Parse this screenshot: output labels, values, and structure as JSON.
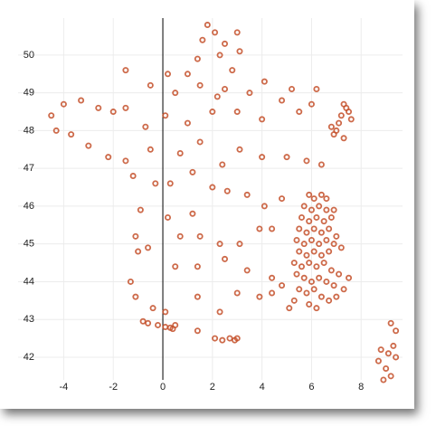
{
  "chart_data": {
    "type": "scatter",
    "xlim": [
      -5.84,
      9.67
    ],
    "ylim": [
      41.4,
      50.98
    ],
    "xticks": [
      -4,
      -2,
      0,
      2,
      4,
      6,
      8
    ],
    "yticks": [
      42,
      43,
      44,
      45,
      46,
      47,
      48,
      49,
      50
    ],
    "grid": true,
    "series": [
      {
        "color": "#c4502a",
        "x": [
          1.8,
          2.1,
          1.6,
          2.5,
          3.0,
          2.3,
          1.4,
          3.1,
          2.8,
          1.0,
          0.2,
          -1.5,
          -0.5,
          0.5,
          1.5,
          2.2,
          2.5,
          3.5,
          4.1,
          4.8,
          5.2,
          6.2,
          6.0,
          5.5,
          4.0,
          3.0,
          2.0,
          1.0,
          0.1,
          -0.7,
          -1.5,
          -2.0,
          -2.6,
          -3.3,
          -4.0,
          -4.5,
          -4.3,
          -3.7,
          -3.0,
          -2.2,
          -1.5,
          -0.5,
          0.7,
          1.5,
          2.4,
          3.1,
          4.0,
          5.0,
          5.8,
          6.4,
          7.3,
          6.9,
          7.1,
          7.2,
          7.4,
          7.0,
          7.5,
          7.3,
          6.8,
          7.6,
          -1.2,
          -0.3,
          0.3,
          1.2,
          2.0,
          2.6,
          3.4,
          4.1,
          4.8,
          1.2,
          0.2,
          -0.9,
          -1.1,
          0.7,
          1.5,
          2.3,
          3.1,
          3.9,
          4.4,
          -1.0,
          -0.6,
          0.5,
          1.4,
          2.5,
          3.4,
          4.4,
          4.8,
          -1.3,
          -1.1,
          -0.4,
          0.1,
          1.4,
          2.3,
          3.0,
          3.9,
          4.4,
          -0.8,
          -0.6,
          -0.2,
          0.1,
          0.3,
          0.4,
          0.5,
          1.4,
          2.1,
          2.4,
          2.7,
          2.9,
          3.0,
          5.9,
          6.1,
          6.4,
          6.6,
          5.7,
          6.0,
          6.3,
          6.6,
          6.9,
          5.6,
          5.9,
          6.2,
          6.5,
          6.8,
          5.5,
          5.8,
          6.1,
          6.4,
          6.7,
          7.0,
          5.4,
          5.7,
          6.0,
          6.3,
          6.6,
          6.9,
          5.5,
          5.8,
          6.1,
          6.4,
          6.7,
          5.3,
          5.6,
          5.9,
          6.2,
          6.5,
          6.8,
          7.1,
          5.4,
          5.7,
          6.0,
          6.3,
          6.6,
          6.9,
          7.3,
          7.5,
          5.5,
          5.8,
          6.1,
          6.4,
          6.7,
          7.0,
          5.9,
          6.2,
          5.3,
          5.1,
          7.2,
          9.2,
          9.4,
          9.3,
          9.1,
          8.8,
          8.7,
          9.0,
          9.2,
          8.9,
          9.4
        ],
        "values": [
          50.8,
          50.6,
          50.4,
          50.3,
          50.6,
          50.0,
          49.9,
          50.1,
          49.6,
          49.5,
          49.5,
          49.6,
          49.2,
          49.0,
          49.2,
          48.9,
          49.1,
          49.0,
          49.3,
          48.8,
          49.1,
          49.1,
          48.7,
          48.5,
          48.3,
          48.5,
          48.5,
          48.2,
          48.4,
          48.1,
          48.6,
          48.5,
          48.6,
          48.8,
          48.7,
          48.4,
          48.0,
          47.9,
          47.6,
          47.3,
          47.2,
          47.5,
          47.4,
          47.7,
          47.1,
          47.5,
          47.3,
          47.3,
          47.2,
          47.1,
          47.8,
          47.9,
          48.2,
          48.4,
          48.6,
          48.0,
          48.5,
          48.7,
          48.1,
          48.3,
          46.8,
          46.6,
          46.6,
          46.9,
          46.5,
          46.4,
          46.3,
          46.0,
          46.2,
          45.8,
          45.7,
          45.9,
          45.2,
          45.2,
          45.2,
          45.0,
          45.0,
          45.4,
          45.4,
          44.8,
          44.9,
          44.4,
          44.4,
          44.6,
          44.3,
          44.1,
          43.9,
          44.0,
          43.6,
          43.3,
          43.2,
          43.6,
          43.2,
          43.7,
          43.6,
          43.7,
          42.95,
          42.9,
          42.85,
          42.8,
          42.78,
          42.75,
          42.85,
          42.7,
          42.5,
          42.45,
          42.5,
          42.45,
          42.5,
          46.3,
          46.2,
          46.3,
          46.2,
          46.0,
          45.9,
          46.0,
          45.9,
          45.9,
          45.7,
          45.6,
          45.7,
          45.6,
          45.7,
          45.4,
          45.3,
          45.4,
          45.3,
          45.4,
          45.2,
          45.1,
          45.0,
          45.1,
          45.0,
          45.1,
          45.0,
          44.8,
          44.7,
          44.8,
          44.7,
          44.8,
          44.5,
          44.4,
          44.5,
          44.4,
          44.5,
          44.3,
          44.2,
          44.2,
          44.1,
          44.0,
          44.1,
          44.0,
          43.9,
          43.8,
          44.1,
          43.8,
          43.7,
          43.8,
          43.6,
          43.5,
          43.6,
          43.4,
          43.3,
          43.5,
          43.3,
          44.9,
          42.9,
          42.7,
          42.3,
          42.1,
          42.2,
          41.9,
          41.7,
          41.5,
          41.4,
          42.0
        ]
      }
    ]
  }
}
